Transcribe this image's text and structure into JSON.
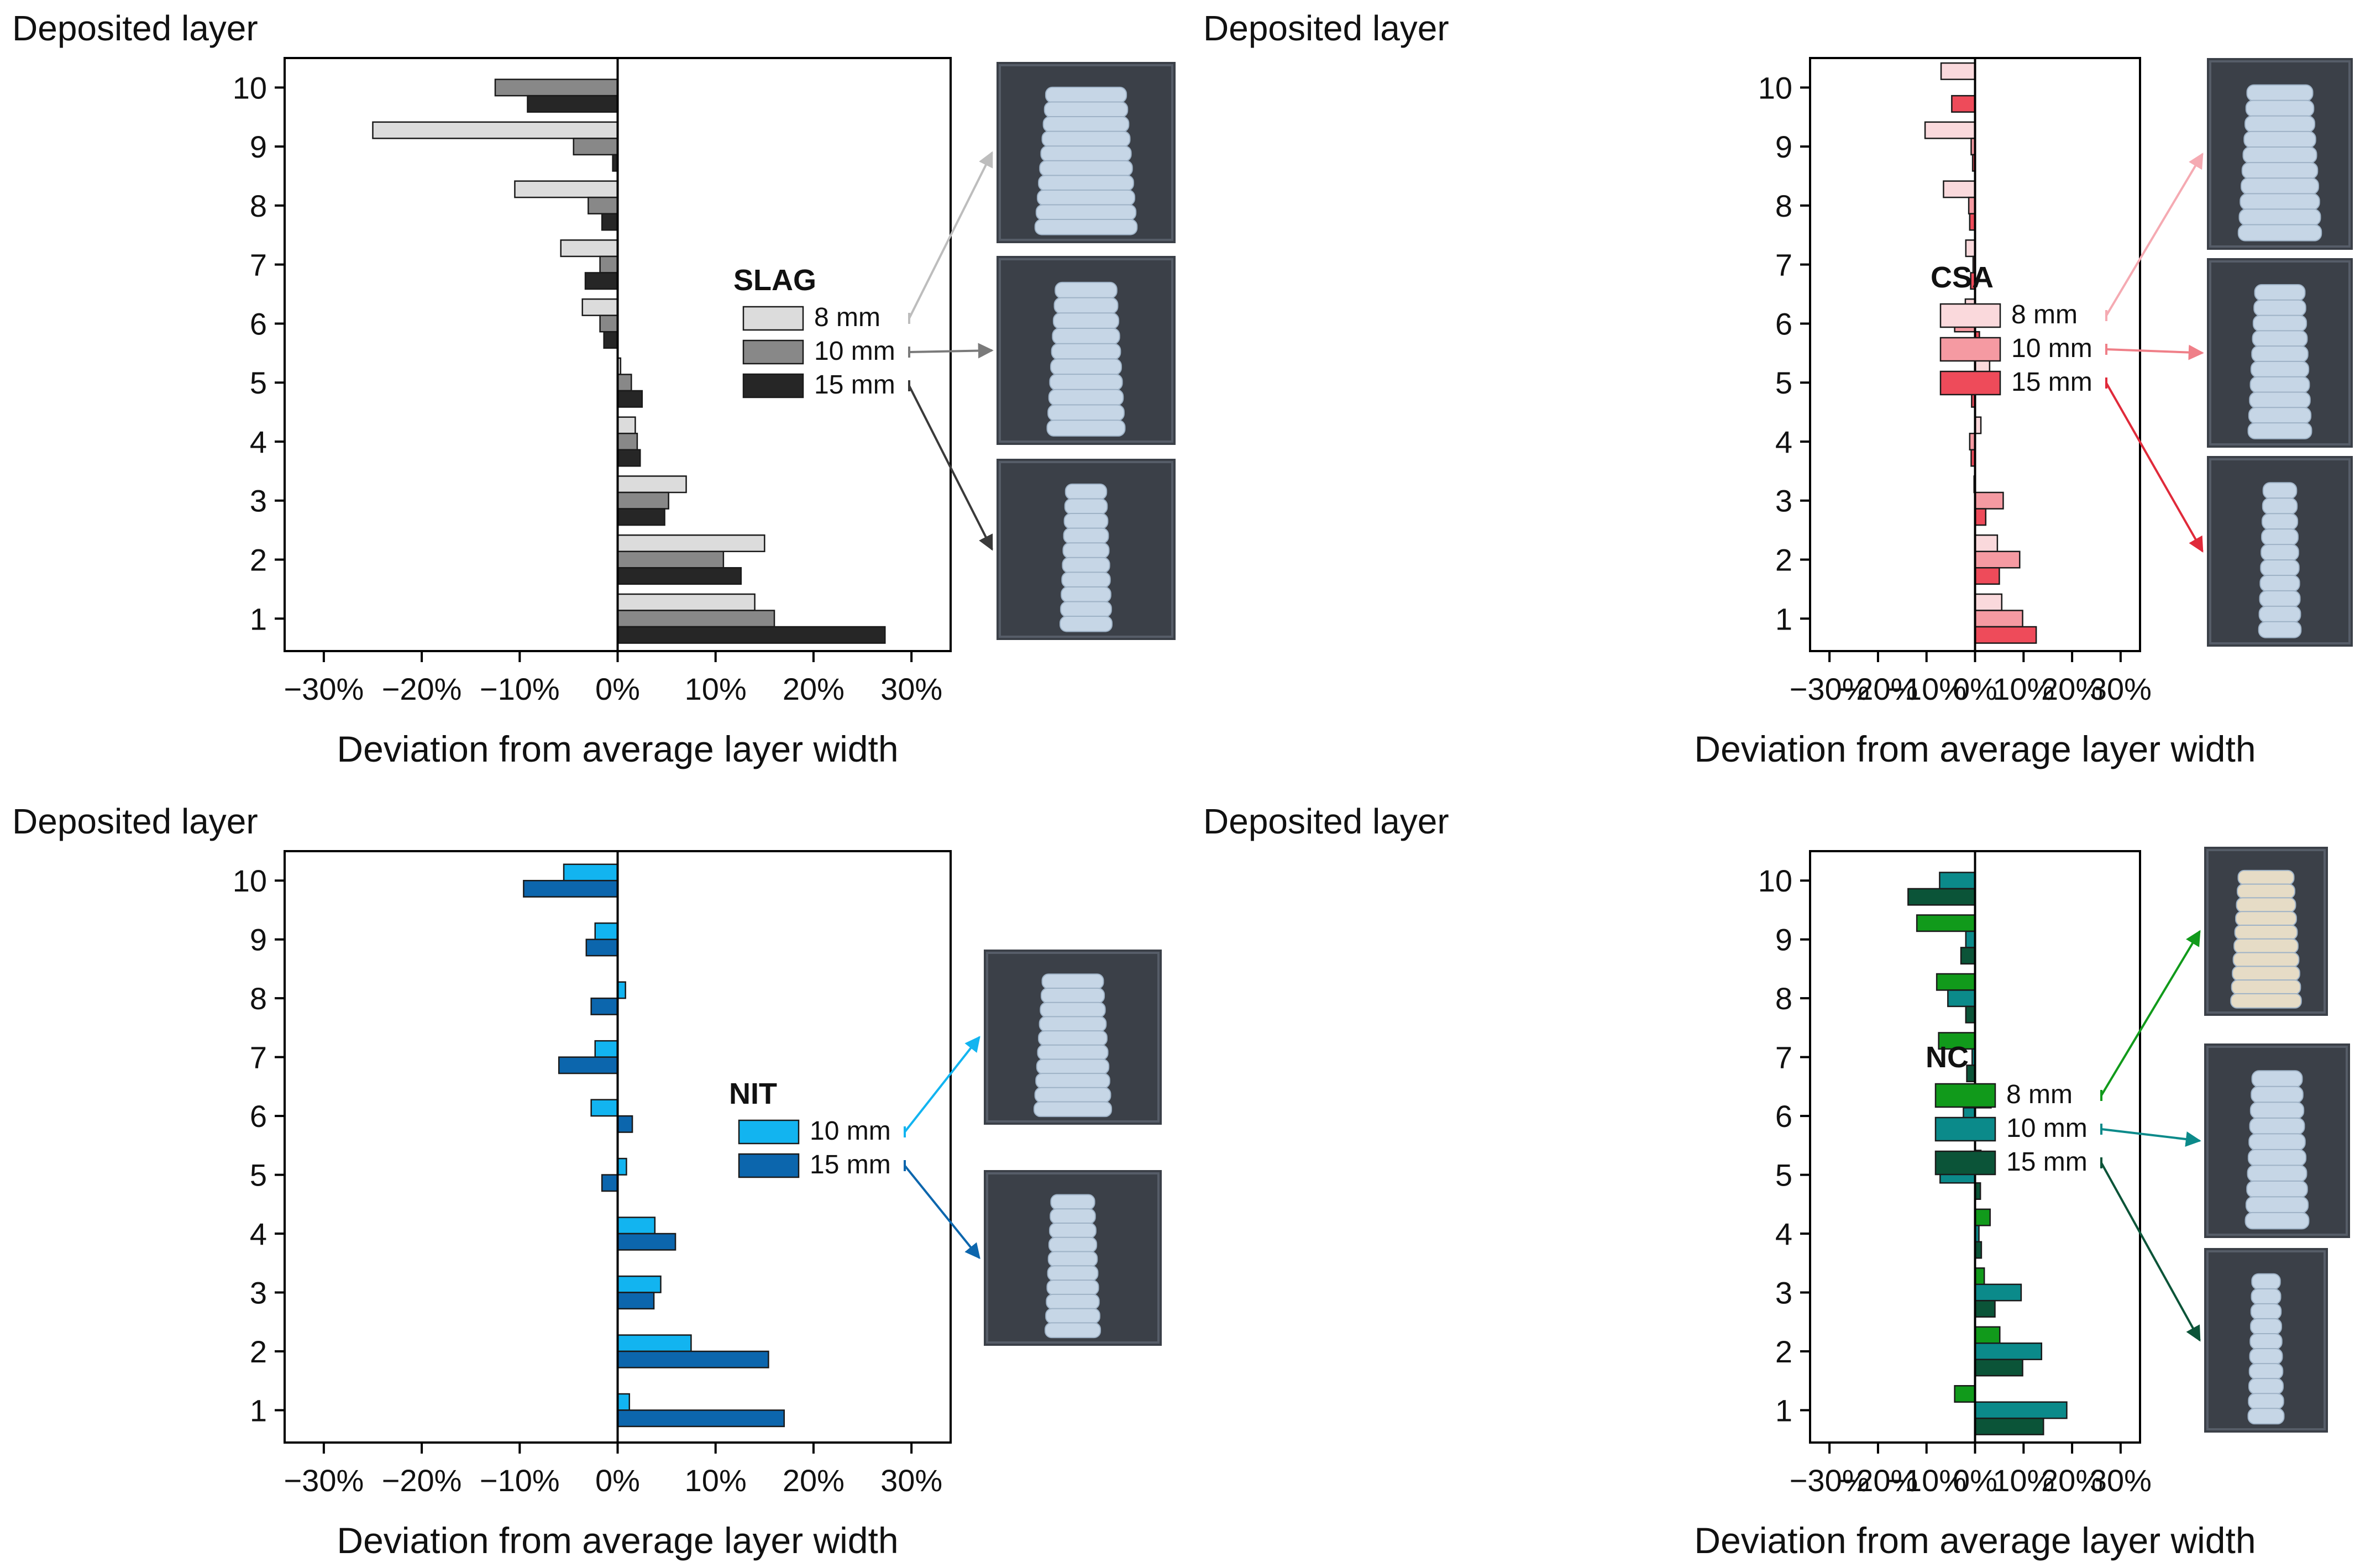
{
  "chart_data": [
    {
      "type": "bar",
      "orientation": "horizontal",
      "panel": "SLAG",
      "legend_title": "SLAG",
      "ylabel": "Deposited layer",
      "xlabel": "Deviation from average layer width",
      "categories": [
        "1",
        "2",
        "3",
        "4",
        "5",
        "6",
        "7",
        "8",
        "9",
        "10"
      ],
      "xlim": [
        -34,
        34
      ],
      "xticks": [
        "−30%",
        "−20%",
        "−10%",
        "0%",
        "10%",
        "20%",
        "30%"
      ],
      "xtick_values": [
        -30,
        -20,
        -10,
        0,
        10,
        20,
        30
      ],
      "series": [
        {
          "name": "8 mm",
          "color": "#dcdcdc",
          "values": [
            14,
            15,
            7,
            1.8,
            0.3,
            -3.6,
            -5.8,
            -10.5,
            -25,
            0
          ]
        },
        {
          "name": "10 mm",
          "color": "#888888",
          "values": [
            16,
            10.8,
            5.2,
            2,
            1.4,
            -1.8,
            -1.8,
            -3,
            -4.5,
            -12.5
          ]
        },
        {
          "name": "15 mm",
          "color": "#262626",
          "values": [
            27.3,
            12.6,
            4.8,
            2.3,
            2.5,
            -1.4,
            -3.3,
            -1.6,
            -0.5,
            -9.2
          ]
        }
      ],
      "arrow_colors": [
        "#bdbdbd",
        "#7a7a7a",
        "#3a3a3a"
      ]
    },
    {
      "type": "bar",
      "orientation": "horizontal",
      "panel": "CSA",
      "legend_title": "CSA",
      "ylabel": "Deposited layer",
      "xlabel": "Deviation from average layer width",
      "categories": [
        "1",
        "2",
        "3",
        "4",
        "5",
        "6",
        "7",
        "8",
        "9",
        "10"
      ],
      "xlim": [
        -34,
        34
      ],
      "xticks": [
        "−30%",
        "−20%",
        "−10%",
        "0%",
        "10%",
        "20%",
        "30%"
      ],
      "xtick_values": [
        -30,
        -20,
        -10,
        0,
        10,
        20,
        30
      ],
      "series": [
        {
          "name": "8 mm",
          "color": "#fad9dc",
          "values": [
            5.5,
            4.6,
            -0.2,
            1.2,
            3,
            -2,
            -1.9,
            -6.5,
            -10.3,
            -7
          ]
        },
        {
          "name": "10 mm",
          "color": "#f59aa2",
          "values": [
            9.8,
            9.2,
            5.8,
            -1.1,
            1.2,
            -4.2,
            -0.4,
            -1.3,
            -0.8,
            0
          ]
        },
        {
          "name": "15 mm",
          "color": "#ee4b5a",
          "values": [
            12.6,
            5,
            2.2,
            -0.8,
            -0.7,
            0.9,
            -0.9,
            -1.1,
            -0.5,
            -4.8
          ]
        }
      ],
      "arrow_colors": [
        "#f5aab2",
        "#ef7f88",
        "#e02a3a"
      ]
    },
    {
      "type": "bar",
      "orientation": "horizontal",
      "panel": "NIT",
      "legend_title": "NIT",
      "ylabel": "Deposited layer",
      "xlabel": "Deviation from average layer width",
      "categories": [
        "1",
        "2",
        "3",
        "4",
        "5",
        "6",
        "7",
        "8",
        "9",
        "10"
      ],
      "xlim": [
        -34,
        34
      ],
      "xticks": [
        "−30%",
        "−20%",
        "−10%",
        "0%",
        "10%",
        "20%",
        "30%"
      ],
      "xtick_values": [
        -30,
        -20,
        -10,
        0,
        10,
        20,
        30
      ],
      "series": [
        {
          "name": "10 mm",
          "color": "#12b4f0",
          "values": [
            1.2,
            7.5,
            4.4,
            3.8,
            0.9,
            -2.7,
            -2.3,
            0.8,
            -2.3,
            -5.5
          ]
        },
        {
          "name": "15 mm",
          "color": "#0c66ad",
          "values": [
            17,
            15.4,
            3.7,
            5.9,
            -1.6,
            1.5,
            -6,
            -2.7,
            -3.2,
            -9.6
          ]
        }
      ],
      "arrow_colors": [
        "#12b4f0",
        "#0c66ad"
      ]
    },
    {
      "type": "bar",
      "orientation": "horizontal",
      "panel": "NC",
      "legend_title": "NC",
      "ylabel": "Deposited layer",
      "xlabel": "Deviation from average layer width",
      "categories": [
        "1",
        "2",
        "3",
        "4",
        "5",
        "6",
        "7",
        "8",
        "9",
        "10"
      ],
      "xlim": [
        -34,
        34
      ],
      "xticks": [
        "−30%",
        "−20%",
        "−10%",
        "0%",
        "10%",
        "20%",
        "30%"
      ],
      "xtick_values": [
        -30,
        -20,
        -10,
        0,
        10,
        20,
        30
      ],
      "series": [
        {
          "name": "8 mm",
          "color": "#119a1b",
          "values": [
            -4.2,
            5.1,
            1.9,
            3.1,
            1.2,
            3.3,
            -7.5,
            -7.9,
            -12,
            0
          ]
        },
        {
          "name": "10 mm",
          "color": "#0b8a8a",
          "values": [
            18.9,
            13.7,
            9.5,
            0.8,
            -7.2,
            -2.4,
            -0.6,
            -5.6,
            -1.9,
            -7.3
          ]
        },
        {
          "name": "15 mm",
          "color": "#0b5438",
          "values": [
            14.1,
            9.8,
            4.1,
            1.3,
            1.1,
            -3,
            -1.7,
            -1.9,
            -2.9,
            -13.8
          ]
        }
      ],
      "arrow_colors": [
        "#119a1b",
        "#0b8a8a",
        "#0b5438"
      ]
    }
  ]
}
